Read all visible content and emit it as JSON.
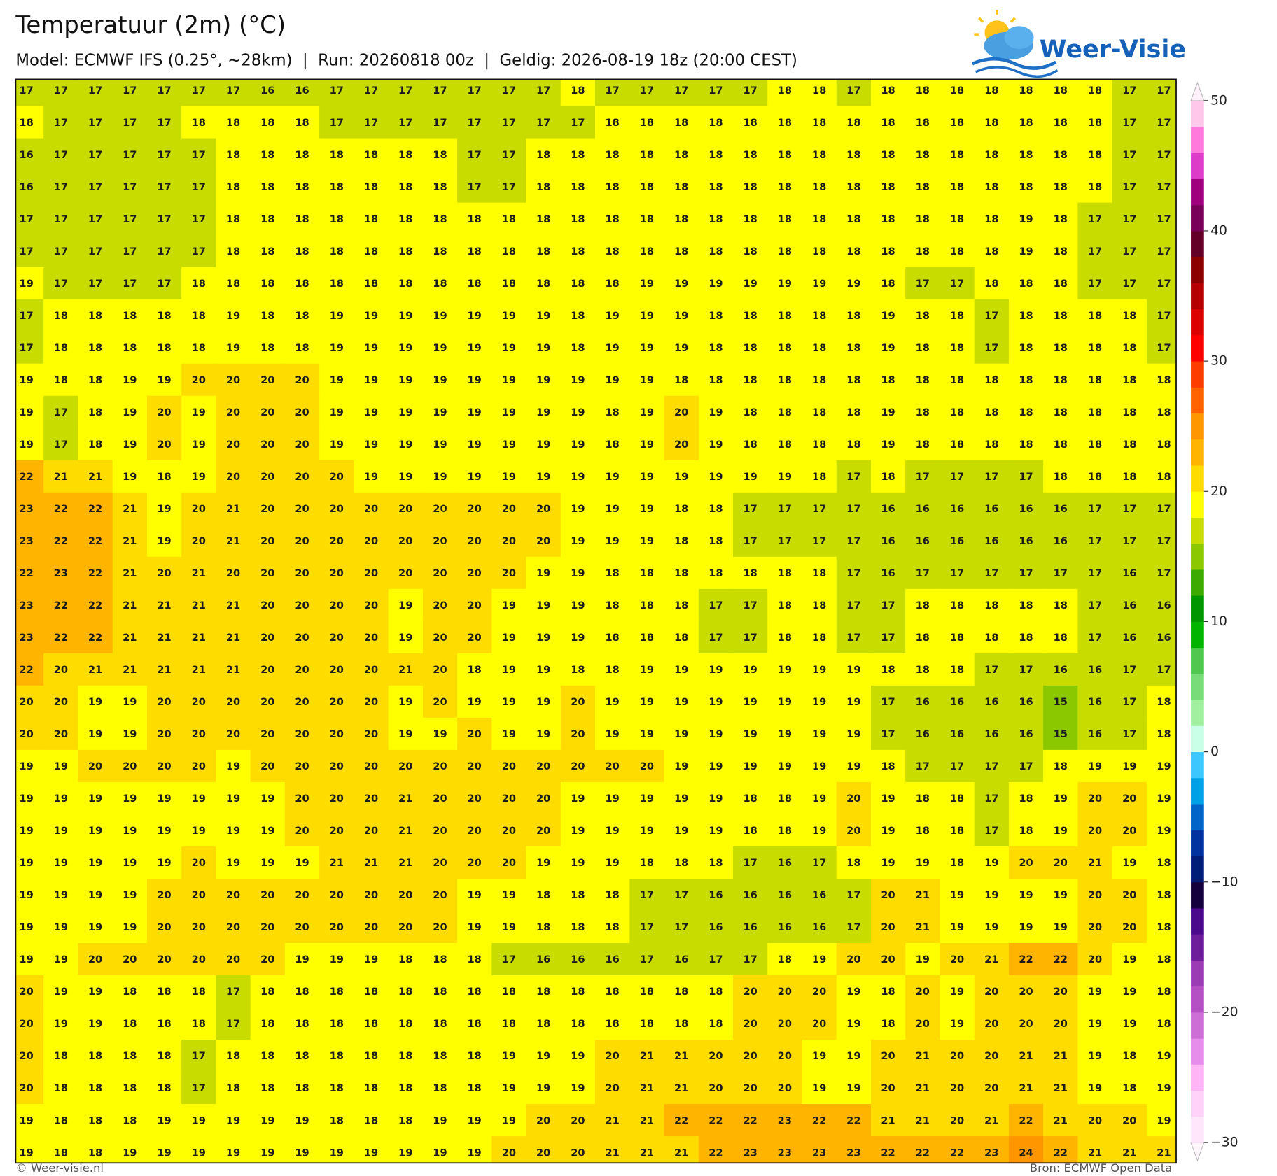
{
  "header": {
    "title": "Temperatuur (2m) (°C)",
    "subtitle": "Model: ECMWF IFS (0.25°, ~28km)  |  Run: 20260818 00z  |  Geldig: 2026-08-19 18z (20:00 CEST)",
    "logo": "Weer-Visie"
  },
  "chart_data": {
    "type": "grid-map",
    "values": [
      [
        17,
        17,
        17,
        17,
        17,
        17,
        17,
        16,
        16,
        17,
        17,
        17,
        17,
        17,
        17,
        17,
        18,
        17,
        17,
        17,
        17,
        17,
        18,
        18,
        17,
        18,
        18,
        18,
        18,
        18,
        18,
        18,
        17,
        17
      ],
      [
        18,
        17,
        17,
        17,
        17,
        18,
        18,
        18,
        18,
        17,
        17,
        17,
        17,
        17,
        17,
        17,
        17,
        18,
        18,
        18,
        18,
        18,
        18,
        18,
        18,
        18,
        18,
        18,
        18,
        18,
        18,
        18,
        17,
        17
      ],
      [
        16,
        17,
        17,
        17,
        17,
        17,
        18,
        18,
        18,
        18,
        18,
        18,
        18,
        17,
        17,
        18,
        18,
        18,
        18,
        18,
        18,
        18,
        18,
        18,
        18,
        18,
        18,
        18,
        18,
        18,
        18,
        18,
        17,
        17
      ],
      [
        16,
        17,
        17,
        17,
        17,
        17,
        18,
        18,
        18,
        18,
        18,
        18,
        18,
        17,
        17,
        18,
        18,
        18,
        18,
        18,
        18,
        18,
        18,
        18,
        18,
        18,
        18,
        18,
        18,
        18,
        18,
        18,
        17,
        17
      ],
      [
        17,
        17,
        17,
        17,
        17,
        17,
        18,
        18,
        18,
        18,
        18,
        18,
        18,
        18,
        18,
        18,
        18,
        18,
        18,
        18,
        18,
        18,
        18,
        18,
        18,
        18,
        18,
        18,
        18,
        19,
        18,
        17,
        17,
        17
      ],
      [
        17,
        17,
        17,
        17,
        17,
        17,
        18,
        18,
        18,
        18,
        18,
        18,
        18,
        18,
        18,
        18,
        18,
        18,
        18,
        18,
        18,
        18,
        18,
        18,
        18,
        18,
        18,
        18,
        18,
        19,
        18,
        17,
        17,
        17
      ],
      [
        19,
        17,
        17,
        17,
        17,
        18,
        18,
        18,
        18,
        18,
        18,
        18,
        18,
        18,
        18,
        18,
        18,
        18,
        19,
        19,
        19,
        19,
        19,
        19,
        19,
        18,
        17,
        17,
        18,
        18,
        18,
        17,
        17,
        17
      ],
      [
        17,
        18,
        18,
        18,
        18,
        18,
        19,
        18,
        18,
        19,
        19,
        19,
        19,
        19,
        19,
        19,
        18,
        19,
        19,
        19,
        18,
        18,
        18,
        18,
        18,
        19,
        18,
        18,
        17,
        18,
        18,
        18,
        18,
        17
      ],
      [
        17,
        18,
        18,
        18,
        18,
        18,
        19,
        18,
        18,
        19,
        19,
        19,
        19,
        19,
        19,
        19,
        18,
        19,
        19,
        19,
        18,
        18,
        18,
        18,
        18,
        19,
        18,
        18,
        17,
        18,
        18,
        18,
        18,
        17
      ],
      [
        19,
        18,
        18,
        19,
        19,
        20,
        20,
        20,
        20,
        19,
        19,
        19,
        19,
        19,
        19,
        19,
        19,
        19,
        19,
        18,
        18,
        18,
        18,
        18,
        18,
        18,
        18,
        18,
        18,
        18,
        18,
        18,
        18,
        18
      ],
      [
        19,
        17,
        18,
        19,
        20,
        19,
        20,
        20,
        20,
        19,
        19,
        19,
        19,
        19,
        19,
        19,
        19,
        18,
        19,
        20,
        19,
        18,
        18,
        18,
        18,
        19,
        18,
        18,
        18,
        18,
        18,
        18,
        18,
        18
      ],
      [
        19,
        17,
        18,
        19,
        20,
        19,
        20,
        20,
        20,
        19,
        19,
        19,
        19,
        19,
        19,
        19,
        19,
        18,
        19,
        20,
        19,
        18,
        18,
        18,
        18,
        19,
        18,
        18,
        18,
        18,
        18,
        18,
        18,
        18
      ],
      [
        22,
        21,
        21,
        19,
        18,
        19,
        20,
        20,
        20,
        20,
        19,
        19,
        19,
        19,
        19,
        19,
        19,
        19,
        19,
        19,
        19,
        19,
        19,
        18,
        17,
        18,
        17,
        17,
        17,
        17,
        18,
        18,
        18,
        18
      ],
      [
        23,
        22,
        22,
        21,
        19,
        20,
        21,
        20,
        20,
        20,
        20,
        20,
        20,
        20,
        20,
        20,
        19,
        19,
        19,
        18,
        18,
        17,
        17,
        17,
        17,
        16,
        16,
        16,
        16,
        16,
        16,
        17,
        17,
        17
      ],
      [
        23,
        22,
        22,
        21,
        19,
        20,
        21,
        20,
        20,
        20,
        20,
        20,
        20,
        20,
        20,
        20,
        19,
        19,
        19,
        18,
        18,
        17,
        17,
        17,
        17,
        16,
        16,
        16,
        16,
        16,
        16,
        17,
        17,
        17
      ],
      [
        22,
        23,
        22,
        21,
        20,
        21,
        20,
        20,
        20,
        20,
        20,
        20,
        20,
        20,
        20,
        19,
        19,
        18,
        18,
        18,
        18,
        18,
        18,
        18,
        17,
        16,
        17,
        17,
        17,
        17,
        17,
        17,
        16,
        17
      ],
      [
        23,
        22,
        22,
        21,
        21,
        21,
        21,
        20,
        20,
        20,
        20,
        19,
        20,
        20,
        19,
        19,
        19,
        18,
        18,
        18,
        17,
        17,
        18,
        18,
        17,
        17,
        18,
        18,
        18,
        18,
        18,
        17,
        16,
        16
      ],
      [
        23,
        22,
        22,
        21,
        21,
        21,
        21,
        20,
        20,
        20,
        20,
        19,
        20,
        20,
        19,
        19,
        19,
        18,
        18,
        18,
        17,
        17,
        18,
        18,
        17,
        17,
        18,
        18,
        18,
        18,
        18,
        17,
        16,
        16
      ],
      [
        22,
        20,
        21,
        21,
        21,
        21,
        21,
        20,
        20,
        20,
        20,
        21,
        20,
        18,
        19,
        19,
        18,
        18,
        19,
        19,
        19,
        19,
        19,
        19,
        19,
        18,
        18,
        18,
        17,
        17,
        16,
        16,
        17,
        17
      ],
      [
        20,
        20,
        19,
        19,
        20,
        20,
        20,
        20,
        20,
        20,
        20,
        19,
        20,
        19,
        19,
        19,
        20,
        19,
        19,
        19,
        19,
        19,
        19,
        19,
        19,
        17,
        16,
        16,
        16,
        16,
        15,
        16,
        17,
        18
      ],
      [
        20,
        20,
        19,
        19,
        20,
        20,
        20,
        20,
        20,
        20,
        20,
        19,
        19,
        20,
        19,
        19,
        20,
        19,
        19,
        19,
        19,
        19,
        19,
        19,
        19,
        17,
        16,
        16,
        16,
        16,
        15,
        16,
        17,
        18
      ],
      [
        19,
        19,
        20,
        20,
        20,
        20,
        19,
        20,
        20,
        20,
        20,
        20,
        20,
        20,
        20,
        20,
        20,
        20,
        20,
        19,
        19,
        19,
        19,
        19,
        19,
        18,
        17,
        17,
        17,
        17,
        18,
        19,
        19,
        19
      ],
      [
        19,
        19,
        19,
        19,
        19,
        19,
        19,
        19,
        20,
        20,
        20,
        21,
        20,
        20,
        20,
        20,
        19,
        19,
        19,
        19,
        19,
        18,
        18,
        19,
        20,
        19,
        18,
        18,
        17,
        18,
        19,
        20,
        20,
        19
      ],
      [
        19,
        19,
        19,
        19,
        19,
        19,
        19,
        19,
        20,
        20,
        20,
        21,
        20,
        20,
        20,
        20,
        19,
        19,
        19,
        19,
        19,
        18,
        18,
        19,
        20,
        19,
        18,
        18,
        17,
        18,
        19,
        20,
        20,
        19
      ],
      [
        19,
        19,
        19,
        19,
        19,
        20,
        19,
        19,
        19,
        21,
        21,
        21,
        20,
        20,
        20,
        19,
        19,
        19,
        18,
        18,
        18,
        17,
        16,
        17,
        18,
        19,
        19,
        18,
        19,
        20,
        20,
        21,
        19,
        18
      ],
      [
        19,
        19,
        19,
        19,
        20,
        20,
        20,
        20,
        20,
        20,
        20,
        20,
        20,
        19,
        19,
        18,
        18,
        18,
        17,
        17,
        16,
        16,
        16,
        16,
        17,
        20,
        21,
        19,
        19,
        19,
        19,
        20,
        20,
        18
      ],
      [
        19,
        19,
        19,
        19,
        20,
        20,
        20,
        20,
        20,
        20,
        20,
        20,
        20,
        19,
        19,
        18,
        18,
        18,
        17,
        17,
        16,
        16,
        16,
        16,
        17,
        20,
        21,
        19,
        19,
        19,
        19,
        20,
        20,
        18
      ],
      [
        19,
        19,
        20,
        20,
        20,
        20,
        20,
        20,
        19,
        19,
        19,
        18,
        18,
        18,
        17,
        16,
        16,
        16,
        17,
        16,
        17,
        17,
        18,
        19,
        20,
        20,
        19,
        20,
        21,
        22,
        22,
        20,
        19,
        18
      ],
      [
        20,
        19,
        19,
        18,
        18,
        18,
        17,
        18,
        18,
        18,
        18,
        18,
        18,
        18,
        18,
        18,
        18,
        18,
        18,
        18,
        18,
        20,
        20,
        20,
        19,
        18,
        20,
        19,
        20,
        20,
        20,
        19,
        19,
        18
      ],
      [
        20,
        19,
        19,
        18,
        18,
        18,
        17,
        18,
        18,
        18,
        18,
        18,
        18,
        18,
        18,
        18,
        18,
        18,
        18,
        18,
        18,
        20,
        20,
        20,
        19,
        18,
        20,
        19,
        20,
        20,
        20,
        19,
        19,
        18
      ],
      [
        20,
        18,
        18,
        18,
        18,
        17,
        18,
        18,
        18,
        18,
        18,
        18,
        18,
        18,
        19,
        19,
        19,
        20,
        21,
        21,
        20,
        20,
        20,
        19,
        19,
        20,
        21,
        20,
        20,
        21,
        21,
        19,
        18,
        19
      ],
      [
        20,
        18,
        18,
        18,
        18,
        17,
        18,
        18,
        18,
        18,
        18,
        18,
        18,
        18,
        19,
        19,
        19,
        20,
        21,
        21,
        20,
        20,
        20,
        19,
        19,
        20,
        21,
        20,
        20,
        21,
        21,
        19,
        18,
        19
      ],
      [
        19,
        18,
        18,
        18,
        19,
        19,
        19,
        19,
        19,
        18,
        18,
        18,
        19,
        19,
        19,
        20,
        20,
        21,
        21,
        22,
        22,
        22,
        23,
        22,
        22,
        21,
        21,
        20,
        21,
        22,
        21,
        20,
        20,
        19
      ],
      [
        19,
        18,
        18,
        19,
        19,
        19,
        19,
        19,
        19,
        19,
        19,
        19,
        19,
        19,
        20,
        20,
        20,
        21,
        21,
        21,
        22,
        23,
        23,
        23,
        23,
        22,
        22,
        22,
        23,
        24,
        22,
        21,
        21,
        21
      ]
    ],
    "colorbar": {
      "lim": [
        -30,
        50
      ],
      "ticks": [
        50,
        40,
        30,
        20,
        10,
        0,
        {
          "value": -10,
          "label": "−10"
        },
        {
          "value": -20,
          "label": "−20"
        },
        {
          "value": -30,
          "label": "−30"
        }
      ],
      "colors": [
        "#ffe6fa",
        "#ffd2fa",
        "#ffb4f5",
        "#e68ceb",
        "#cd6ed7",
        "#b450c3",
        "#9b3cb4",
        "#6e1e9b",
        "#4b0a8c",
        "#14003c",
        "#001e78",
        "#0032a0",
        "#0064c8",
        "#00a0e6",
        "#3cc8ff",
        "#c8ffe6",
        "#a0f0a0",
        "#78dc78",
        "#50c850",
        "#00b400",
        "#009600",
        "#3caa00",
        "#8cc800",
        "#c8dc00",
        "#ffff00",
        "#ffdc00",
        "#ffb400",
        "#ff9600",
        "#ff6400",
        "#ff3c00",
        "#ff0000",
        "#dc0000",
        "#b40000",
        "#8c0000",
        "#640028",
        "#78005a",
        "#a0007d",
        "#dc3cc8",
        "#ff78dc",
        "#ffc8eb"
      ]
    }
  },
  "footer": {
    "left": "© Weer-visie.nl",
    "right": "Bron: ECMWF Open Data"
  }
}
